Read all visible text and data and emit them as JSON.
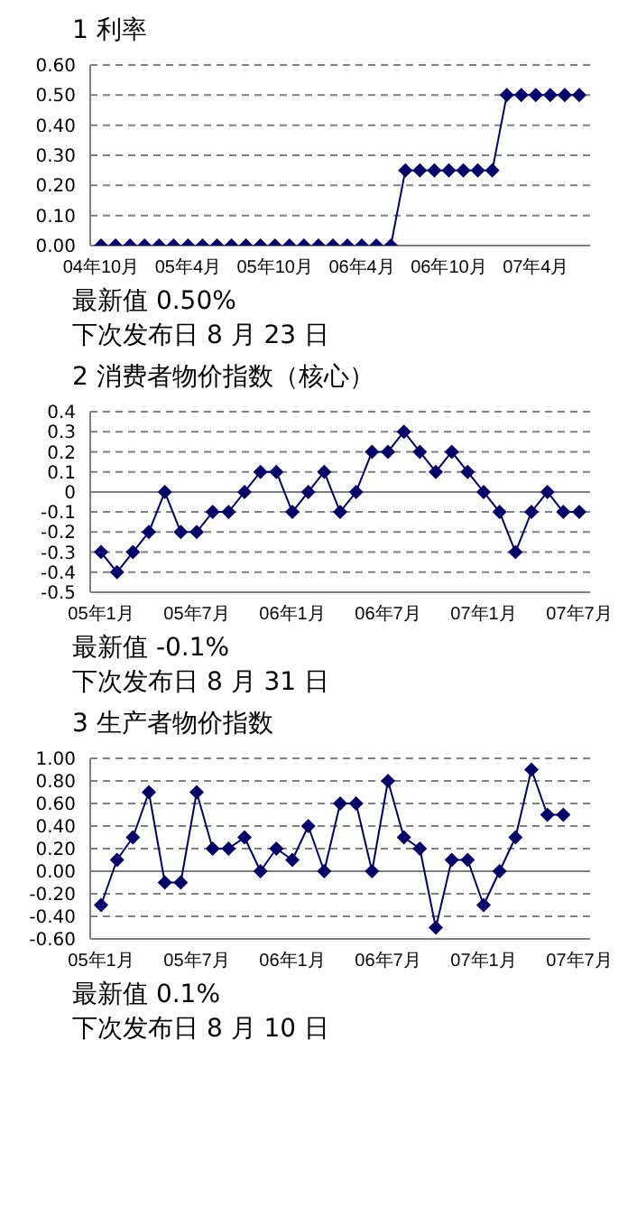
{
  "chart_data": [
    {
      "type": "line",
      "title": "1 利率",
      "categories": [
        "04年10月",
        null,
        null,
        null,
        null,
        null,
        "05年4月",
        null,
        null,
        null,
        null,
        null,
        "05年10月",
        null,
        null,
        null,
        null,
        null,
        "06年4月",
        null,
        null,
        null,
        null,
        null,
        "06年10月",
        null,
        null,
        null,
        null,
        null,
        "07年4月",
        null,
        null,
        null
      ],
      "series": [
        {
          "color": "#000066",
          "values": [
            0,
            0,
            0,
            0,
            0,
            0,
            0,
            0,
            0,
            0,
            0,
            0,
            0,
            0,
            0,
            0,
            0,
            0,
            0,
            0,
            0,
            0.25,
            0.25,
            0.25,
            0.25,
            0.25,
            0.25,
            0.25,
            0.5,
            0.5,
            0.5,
            0.5,
            0.5,
            0.5
          ]
        }
      ],
      "ylim": [
        0,
        0.6
      ],
      "yticks": [
        {
          "value": 0,
          "label": "0.00"
        },
        {
          "value": 0.1,
          "label": "0.10"
        },
        {
          "value": 0.2,
          "label": "0.20"
        },
        {
          "value": 0.3,
          "label": "0.30"
        },
        {
          "value": 0.4,
          "label": "0.40"
        },
        {
          "value": 0.5,
          "label": "0.50"
        },
        {
          "value": 0.6,
          "label": "0.60"
        }
      ],
      "grid": "y",
      "legend": false,
      "marker": "diamond",
      "line_style": "solid",
      "annotations": [
        "最新值 0.50%",
        "下次发布日 8 月 23 日"
      ]
    },
    {
      "type": "line",
      "title": "2 消费者物价指数（核心）",
      "categories": [
        "05年1月",
        null,
        null,
        null,
        null,
        null,
        "05年7月",
        null,
        null,
        null,
        null,
        null,
        "06年1月",
        null,
        null,
        null,
        null,
        null,
        "06年7月",
        null,
        null,
        null,
        null,
        null,
        "07年1月",
        null,
        null,
        null,
        null,
        null,
        "07年7月"
      ],
      "series": [
        {
          "color": "#000066",
          "values": [
            -0.3,
            -0.4,
            -0.3,
            -0.2,
            0,
            -0.2,
            -0.2,
            -0.1,
            -0.1,
            0,
            0.1,
            0.1,
            -0.1,
            0,
            0.1,
            -0.1,
            0,
            0.2,
            0.2,
            0.3,
            0.2,
            0.1,
            0.2,
            0.1,
            0,
            -0.1,
            -0.3,
            -0.1,
            0,
            -0.1,
            -0.1
          ]
        }
      ],
      "ylim": [
        -0.5,
        0.4
      ],
      "yticks": [
        -0.5,
        -0.4,
        -0.3,
        -0.2,
        -0.1,
        0,
        0.1,
        0.2,
        0.3,
        0.4
      ],
      "ref_lines": [
        {
          "axis": "y",
          "value": 0,
          "color": "#808080"
        }
      ],
      "grid": "y",
      "legend": false,
      "marker": "diamond",
      "line_style": "solid",
      "annotations": [
        "最新值 -0.1%",
        "下次发布日 8 月 31 日"
      ]
    },
    {
      "type": "line",
      "title": "3 生产者物价指数",
      "categories": [
        "05年1月",
        null,
        null,
        null,
        null,
        null,
        "05年7月",
        null,
        null,
        null,
        null,
        null,
        "06年1月",
        null,
        null,
        null,
        null,
        null,
        "06年7月",
        null,
        null,
        null,
        null,
        null,
        "07年1月",
        null,
        null,
        null,
        null,
        null,
        "07年7月"
      ],
      "series": [
        {
          "color": "#000066",
          "values": [
            -0.3,
            0.1,
            0.3,
            0.7,
            -0.1,
            -0.1,
            0.7,
            0.2,
            0.2,
            0.3,
            0,
            0.2,
            0.1,
            0.4,
            0,
            0.6,
            0.6,
            0,
            0.8,
            0.3,
            0.2,
            -0.5,
            0.1,
            0.1,
            -0.3,
            0,
            0.3,
            0.9,
            0.5,
            0.5,
            null
          ]
        }
      ],
      "ylim": [
        -0.6,
        1.0
      ],
      "yticks": [
        {
          "value": -0.6,
          "label": "-0.60"
        },
        {
          "value": -0.4,
          "label": "-0.40"
        },
        {
          "value": -0.2,
          "label": "-0.20"
        },
        {
          "value": 0,
          "label": "0.00"
        },
        {
          "value": 0.2,
          "label": "0.20"
        },
        {
          "value": 0.4,
          "label": "0.40"
        },
        {
          "value": 0.6,
          "label": "0.60"
        },
        {
          "value": 0.8,
          "label": "0.80"
        },
        {
          "value": 1.0,
          "label": "1.00"
        }
      ],
      "ref_lines": [
        {
          "axis": "y",
          "value": 0,
          "color": "#808080"
        }
      ],
      "grid": "y",
      "legend": false,
      "marker": "diamond",
      "line_style": "solid",
      "annotations": [
        "最新值 0.1%",
        "下次发布日 8 月 10 日"
      ]
    }
  ]
}
